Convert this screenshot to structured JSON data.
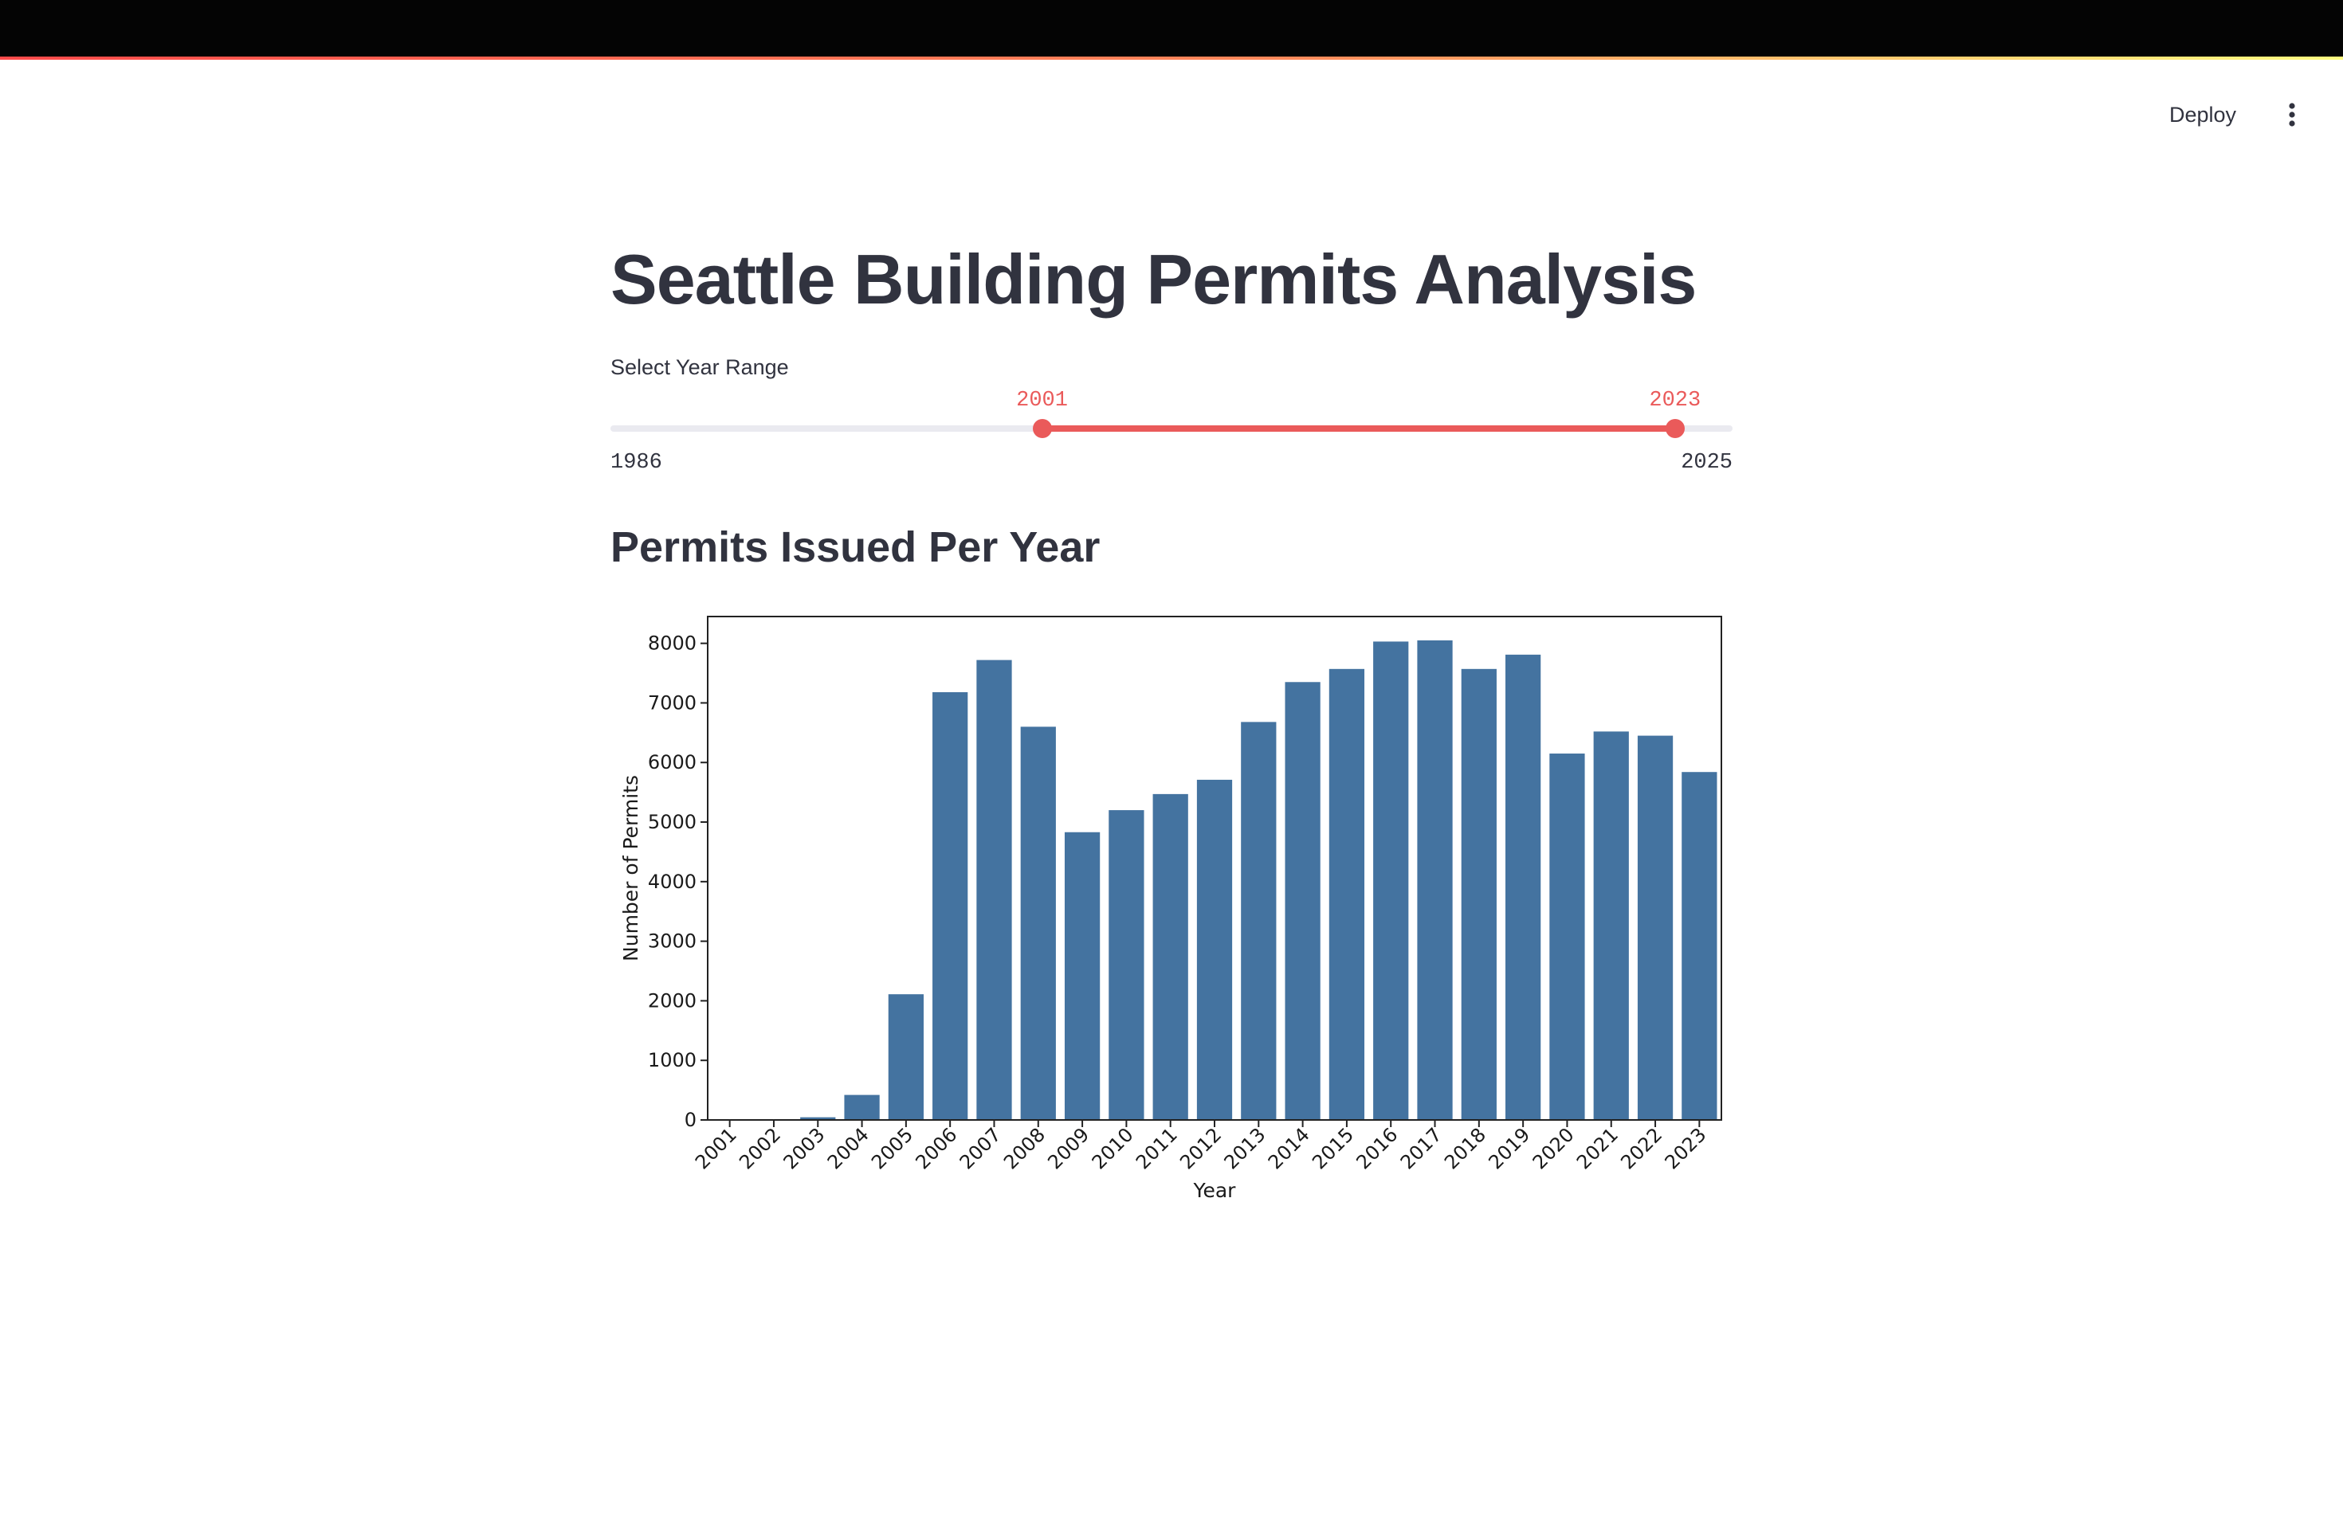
{
  "header": {
    "deploy_label": "Deploy",
    "menu_icon": "kebab-menu-icon"
  },
  "page": {
    "title": "Seattle Building Permits Analysis"
  },
  "year_slider": {
    "label": "Select Year Range",
    "min": 1986,
    "max": 2025,
    "value_low": 2001,
    "value_high": 2023,
    "accent_color": "#ea5a5a"
  },
  "section": {
    "title": "Permits Issued Per Year"
  },
  "chart_data": {
    "type": "bar",
    "title": "",
    "xlabel": "Year",
    "ylabel": "Number of Permits",
    "ylim": [
      0,
      8450
    ],
    "yticks": [
      0,
      1000,
      2000,
      3000,
      4000,
      5000,
      6000,
      7000,
      8000
    ],
    "grid": false,
    "bar_color": "#4473a0",
    "categories": [
      "2001",
      "2002",
      "2003",
      "2004",
      "2005",
      "2006",
      "2007",
      "2008",
      "2009",
      "2010",
      "2011",
      "2012",
      "2013",
      "2014",
      "2015",
      "2016",
      "2017",
      "2018",
      "2019",
      "2020",
      "2021",
      "2022",
      "2023"
    ],
    "values": [
      3,
      5,
      45,
      420,
      2110,
      7180,
      7720,
      6600,
      4830,
      5200,
      5470,
      5710,
      6680,
      7350,
      7570,
      8030,
      8050,
      7570,
      7810,
      6150,
      6520,
      6450,
      5840
    ]
  }
}
